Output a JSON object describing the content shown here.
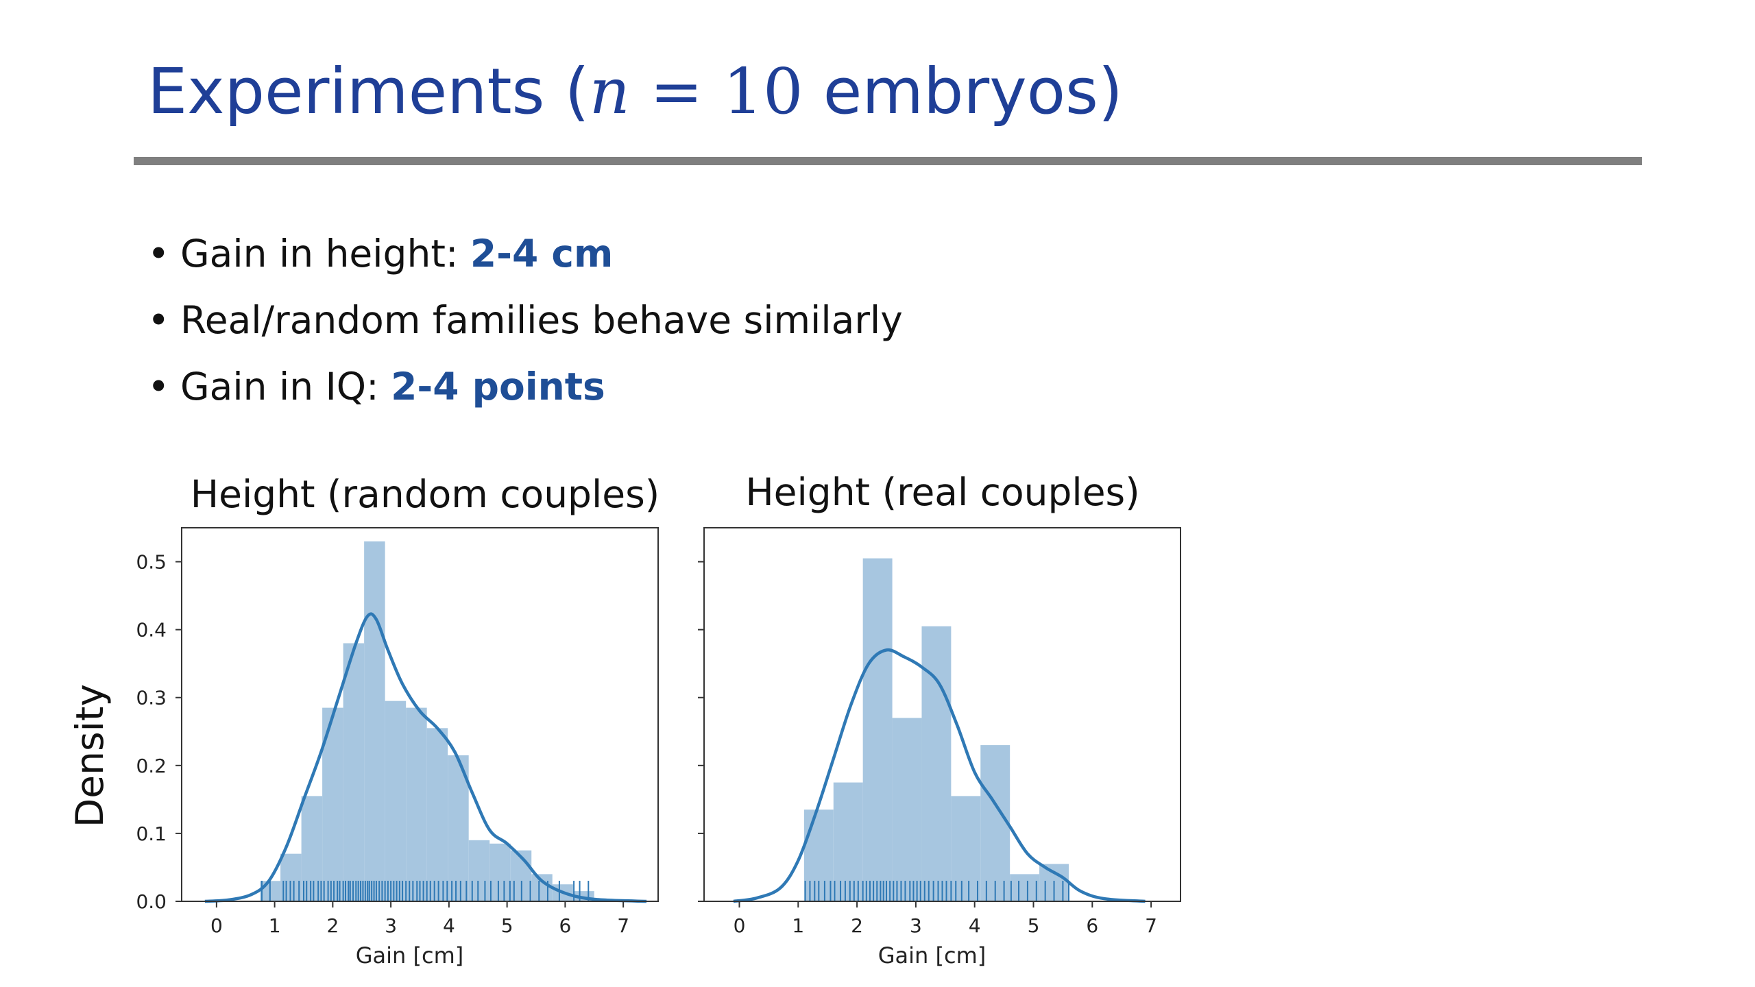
{
  "slide": {
    "title_prefix": "Experiments (",
    "title_var": "n",
    "title_eq": " = ",
    "title_num": "10",
    "title_suffix": " embryos)",
    "bullets": [
      {
        "text": "Gain in height: ",
        "highlight": "2-4 cm"
      },
      {
        "text": "Real/random families behave similarly",
        "highlight": ""
      },
      {
        "text": "Gain in IQ: ",
        "highlight": "2-4 points"
      }
    ]
  },
  "colors": {
    "title": "#1f3f97",
    "highlight": "#1f4e96",
    "bar": "#a7c6e0",
    "line": "#2f79b5",
    "rule": "#7f7f7f"
  },
  "chart_data": [
    {
      "type": "bar",
      "title": "Height (random couples)",
      "xlabel": "Gain [cm]",
      "ylabel": "Density",
      "xlim": [
        -0.6,
        7.6
      ],
      "ylim": [
        0,
        0.55
      ],
      "xticks": [
        "0",
        "1",
        "2",
        "3",
        "4",
        "5",
        "6",
        "7"
      ],
      "yticks": [
        "0.0",
        "0.1",
        "0.2",
        "0.3",
        "0.4",
        "0.5"
      ],
      "bins": [
        {
          "x0": 0.75,
          "x1": 1.1,
          "value": 0.03
        },
        {
          "x0": 1.1,
          "x1": 1.46,
          "value": 0.07
        },
        {
          "x0": 1.46,
          "x1": 1.82,
          "value": 0.155
        },
        {
          "x0": 1.82,
          "x1": 2.18,
          "value": 0.285
        },
        {
          "x0": 2.18,
          "x1": 2.54,
          "value": 0.38
        },
        {
          "x0": 2.54,
          "x1": 2.9,
          "value": 0.53
        },
        {
          "x0": 2.9,
          "x1": 3.26,
          "value": 0.295
        },
        {
          "x0": 3.26,
          "x1": 3.62,
          "value": 0.285
        },
        {
          "x0": 3.62,
          "x1": 3.98,
          "value": 0.255
        },
        {
          "x0": 3.98,
          "x1": 4.34,
          "value": 0.215
        },
        {
          "x0": 4.34,
          "x1": 4.7,
          "value": 0.09
        },
        {
          "x0": 4.7,
          "x1": 5.06,
          "value": 0.085
        },
        {
          "x0": 5.06,
          "x1": 5.42,
          "value": 0.075
        },
        {
          "x0": 5.42,
          "x1": 5.78,
          "value": 0.04
        },
        {
          "x0": 5.78,
          "x1": 6.14,
          "value": 0.025
        },
        {
          "x0": 6.14,
          "x1": 6.5,
          "value": 0.015
        }
      ],
      "kde": [
        [
          -0.2,
          0
        ],
        [
          0.2,
          0.002
        ],
        [
          0.6,
          0.01
        ],
        [
          0.9,
          0.03
        ],
        [
          1.2,
          0.08
        ],
        [
          1.5,
          0.15
        ],
        [
          1.8,
          0.22
        ],
        [
          2.1,
          0.3
        ],
        [
          2.4,
          0.38
        ],
        [
          2.6,
          0.42
        ],
        [
          2.75,
          0.415
        ],
        [
          2.95,
          0.37
        ],
        [
          3.2,
          0.32
        ],
        [
          3.5,
          0.28
        ],
        [
          3.8,
          0.255
        ],
        [
          4.1,
          0.22
        ],
        [
          4.4,
          0.16
        ],
        [
          4.7,
          0.105
        ],
        [
          5.0,
          0.085
        ],
        [
          5.3,
          0.06
        ],
        [
          5.6,
          0.03
        ],
        [
          6.0,
          0.012
        ],
        [
          6.5,
          0.003
        ],
        [
          7.4,
          0
        ]
      ],
      "rug": [
        0.78,
        0.92,
        1.15,
        1.2,
        1.27,
        1.33,
        1.42,
        1.5,
        1.55,
        1.62,
        1.67,
        1.75,
        1.8,
        1.85,
        1.92,
        1.97,
        2.02,
        2.08,
        2.12,
        2.18,
        2.22,
        2.27,
        2.3,
        2.35,
        2.4,
        2.44,
        2.48,
        2.52,
        2.56,
        2.6,
        2.63,
        2.67,
        2.71,
        2.75,
        2.8,
        2.85,
        2.9,
        2.95,
        3.0,
        3.05,
        3.1,
        3.15,
        3.2,
        3.26,
        3.32,
        3.38,
        3.45,
        3.5,
        3.56,
        3.62,
        3.68,
        3.75,
        3.82,
        3.9,
        3.97,
        4.05,
        4.12,
        4.2,
        4.3,
        4.4,
        4.5,
        4.62,
        4.72,
        4.85,
        4.95,
        5.05,
        5.12,
        5.25,
        5.4,
        5.55,
        5.7,
        5.9,
        6.15,
        6.25,
        6.4
      ]
    },
    {
      "type": "bar",
      "title": "Height (real couples)",
      "xlabel": "Gain [cm]",
      "ylabel": "",
      "xlim": [
        -0.6,
        7.5
      ],
      "ylim": [
        0,
        0.55
      ],
      "xticks": [
        "0",
        "1",
        "2",
        "3",
        "4",
        "5",
        "6",
        "7"
      ],
      "yticks": [],
      "bins": [
        {
          "x0": 1.1,
          "x1": 1.6,
          "value": 0.135
        },
        {
          "x0": 1.6,
          "x1": 2.1,
          "value": 0.175
        },
        {
          "x0": 2.1,
          "x1": 2.6,
          "value": 0.505
        },
        {
          "x0": 2.6,
          "x1": 3.1,
          "value": 0.27
        },
        {
          "x0": 3.1,
          "x1": 3.6,
          "value": 0.405
        },
        {
          "x0": 3.6,
          "x1": 4.1,
          "value": 0.155
        },
        {
          "x0": 4.1,
          "x1": 4.6,
          "value": 0.23
        },
        {
          "x0": 4.6,
          "x1": 5.1,
          "value": 0.04
        },
        {
          "x0": 5.1,
          "x1": 5.6,
          "value": 0.055
        }
      ],
      "kde": [
        [
          -0.1,
          0
        ],
        [
          0.3,
          0.005
        ],
        [
          0.7,
          0.02
        ],
        [
          1.0,
          0.06
        ],
        [
          1.3,
          0.13
        ],
        [
          1.6,
          0.21
        ],
        [
          1.9,
          0.29
        ],
        [
          2.2,
          0.35
        ],
        [
          2.5,
          0.37
        ],
        [
          2.8,
          0.36
        ],
        [
          3.1,
          0.345
        ],
        [
          3.4,
          0.32
        ],
        [
          3.7,
          0.26
        ],
        [
          4.0,
          0.19
        ],
        [
          4.3,
          0.15
        ],
        [
          4.6,
          0.11
        ],
        [
          4.9,
          0.07
        ],
        [
          5.2,
          0.05
        ],
        [
          5.5,
          0.035
        ],
        [
          5.8,
          0.015
        ],
        [
          6.2,
          0.004
        ],
        [
          6.9,
          0
        ]
      ],
      "rug": [
        1.12,
        1.2,
        1.28,
        1.35,
        1.45,
        1.55,
        1.62,
        1.72,
        1.8,
        1.88,
        1.95,
        2.02,
        2.1,
        2.16,
        2.22,
        2.28,
        2.34,
        2.4,
        2.45,
        2.5,
        2.56,
        2.62,
        2.68,
        2.75,
        2.82,
        2.9,
        2.96,
        3.02,
        3.08,
        3.15,
        3.22,
        3.3,
        3.38,
        3.45,
        3.52,
        3.6,
        3.68,
        3.78,
        3.9,
        4.05,
        4.2,
        4.35,
        4.5,
        4.62,
        4.75,
        4.9,
        5.05,
        5.2,
        5.35,
        5.5,
        5.6
      ]
    }
  ]
}
